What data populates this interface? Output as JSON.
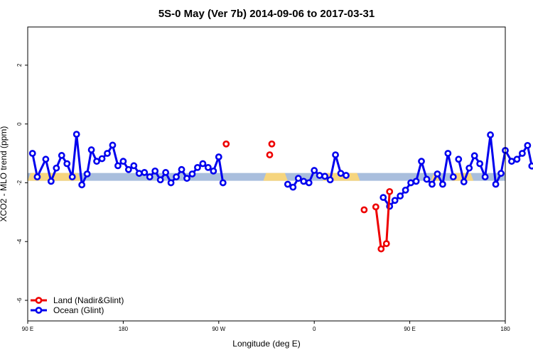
{
  "chart_data": {
    "type": "line",
    "title": "5S-0 May (Ver 7b)   2014-09-06 to 2017-03-31",
    "xlabel": "Longitude (deg E)",
    "ylabel": "XCO2 - MLO trend (ppm)",
    "xlim": [
      90,
      540
    ],
    "ylim": [
      -6.7,
      3.3
    ],
    "x_ticks": [
      {
        "value": 90,
        "label": "90 E"
      },
      {
        "value": 180,
        "label": "180"
      },
      {
        "value": 270,
        "label": "90 W"
      },
      {
        "value": 360,
        "label": "0"
      },
      {
        "value": 450,
        "label": "90 E"
      },
      {
        "value": 540,
        "label": "180"
      }
    ],
    "y_ticks": [
      {
        "value": 2,
        "label": "2"
      },
      {
        "value": 0,
        "label": "0"
      },
      {
        "value": -2,
        "label": "-2"
      },
      {
        "value": -4,
        "label": "-4"
      },
      {
        "value": -6,
        "label": "-6"
      }
    ],
    "band": {
      "y_center": -1.8,
      "ocean_color": "#a9bedd",
      "land_color": "#f6d57e",
      "land_segments": [
        [
          90,
          140
        ],
        [
          312,
          335
        ],
        [
          368,
          403
        ],
        [
          470,
          478
        ],
        [
          490,
          510
        ]
      ]
    },
    "legend": {
      "position": "bottom-left",
      "entries": [
        {
          "label": "Land (Nadir&Glint)",
          "color": "#ee0000"
        },
        {
          "label": "Ocean (Glint)",
          "color": "#0000ee"
        }
      ]
    },
    "series": [
      {
        "name": "Ocean (Glint)",
        "color": "#0000ee",
        "segments": [
          [
            [
              94.5,
              -1.0
            ],
            [
              99,
              -1.8
            ],
            [
              107,
              -1.2
            ],
            [
              112,
              -1.95
            ],
            [
              117,
              -1.5
            ],
            [
              122,
              -1.07
            ],
            [
              127,
              -1.35
            ],
            [
              132,
              -1.8
            ],
            [
              136,
              -0.35
            ],
            [
              141,
              -2.07
            ],
            [
              146,
              -1.7
            ],
            [
              150,
              -0.88
            ],
            [
              155,
              -1.27
            ],
            [
              160,
              -1.18
            ],
            [
              165,
              -1.0
            ],
            [
              170,
              -0.72
            ],
            [
              175,
              -1.42
            ],
            [
              180,
              -1.27
            ],
            [
              185,
              -1.55
            ],
            [
              190,
              -1.42
            ],
            [
              195,
              -1.68
            ],
            [
              200,
              -1.65
            ],
            [
              205,
              -1.8
            ],
            [
              210,
              -1.6
            ],
            [
              215,
              -1.9
            ],
            [
              220,
              -1.65
            ],
            [
              225,
              -2.0
            ],
            [
              230,
              -1.8
            ],
            [
              235,
              -1.55
            ],
            [
              240,
              -1.85
            ],
            [
              245,
              -1.7
            ],
            [
              250,
              -1.48
            ],
            [
              255,
              -1.35
            ],
            [
              260,
              -1.48
            ],
            [
              265,
              -1.6
            ],
            [
              270,
              -1.12
            ],
            [
              274,
              -2.0
            ]
          ],
          [
            [
              335,
              -2.05
            ],
            [
              340,
              -2.15
            ],
            [
              345,
              -1.85
            ],
            [
              350,
              -1.95
            ],
            [
              355,
              -2.0
            ],
            [
              360,
              -1.58
            ],
            [
              365,
              -1.75
            ],
            [
              370,
              -1.78
            ],
            [
              375,
              -1.9
            ],
            [
              380,
              -1.05
            ],
            [
              385,
              -1.68
            ],
            [
              390,
              -1.75
            ]
          ],
          [
            [
              425,
              -2.5
            ],
            [
              431,
              -2.8
            ],
            [
              436,
              -2.6
            ],
            [
              441,
              -2.45
            ],
            [
              446,
              -2.25
            ],
            [
              451,
              -2.0
            ],
            [
              456,
              -1.95
            ],
            [
              461,
              -1.27
            ],
            [
              466,
              -1.88
            ],
            [
              471,
              -2.05
            ],
            [
              476,
              -1.7
            ],
            [
              481,
              -2.05
            ],
            [
              486,
              -1.0
            ],
            [
              491,
              -1.8
            ]
          ],
          [
            [
              496,
              -1.2
            ],
            [
              501,
              -1.97
            ],
            [
              506,
              -1.5
            ],
            [
              511,
              -1.08
            ],
            [
              516,
              -1.35
            ],
            [
              521,
              -1.8
            ],
            [
              526,
              -0.37
            ],
            [
              531,
              -2.05
            ],
            [
              536,
              -1.68
            ],
            [
              540,
              -0.9
            ],
            [
              546,
              -1.27
            ],
            [
              551,
              -1.2
            ],
            [
              556,
              -1.0
            ],
            [
              561,
              -0.73
            ],
            [
              565,
              -1.43
            ]
          ]
        ]
      },
      {
        "name": "Land (Nadir&Glint)",
        "color": "#ee0000",
        "segments": [
          [
            [
              277,
              -0.68
            ]
          ],
          [
            [
              318,
              -1.05
            ]
          ],
          [
            [
              320,
              -0.68
            ]
          ],
          [
            [
              407,
              -2.92
            ]
          ],
          [
            [
              418,
              -2.82
            ],
            [
              423,
              -4.25
            ],
            [
              428,
              -4.07
            ],
            [
              431,
              -2.3
            ]
          ]
        ]
      }
    ]
  }
}
